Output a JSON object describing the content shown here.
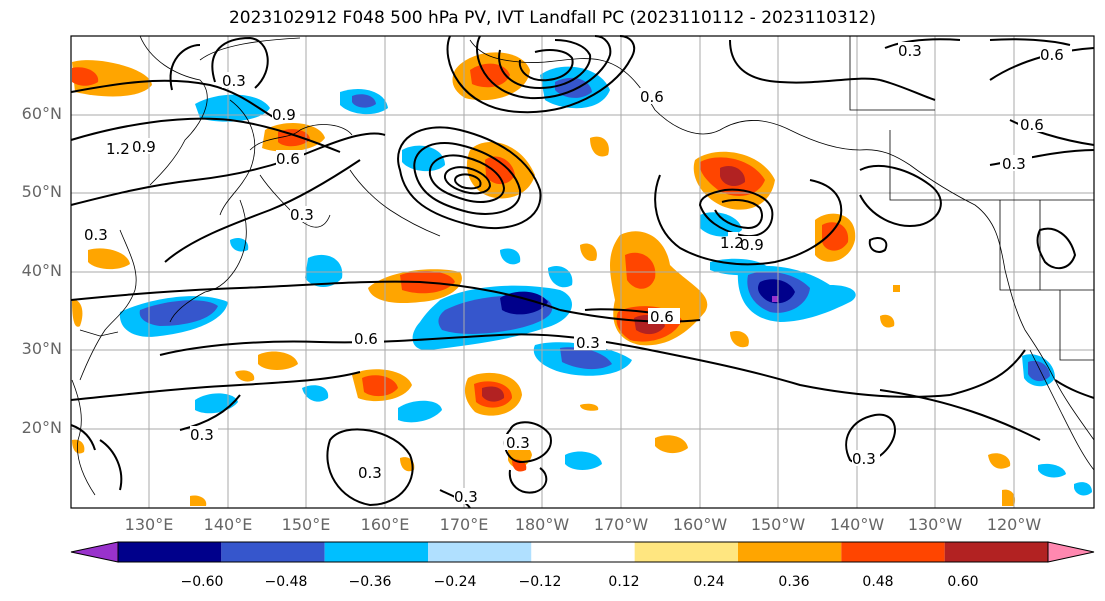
{
  "title": "2023102912 F048 500 hPa PV, IVT Landfall PC (2023110112 - 2023110312)",
  "lat_labels": [
    "60°N",
    "50°N",
    "40°N",
    "30°N",
    "20°N"
  ],
  "lon_labels": [
    "130°E",
    "140°E",
    "150°E",
    "160°E",
    "170°E",
    "180°W",
    "170°W",
    "160°W",
    "150°W",
    "140°W",
    "130°W",
    "120°W"
  ],
  "colorbar": {
    "ticks": [
      "−0.60",
      "−0.48",
      "−0.36",
      "−0.24",
      "−0.12",
      "0.12",
      "0.24",
      "0.36",
      "0.48",
      "0.60"
    ],
    "colors": [
      "#9932CC",
      "#00008B",
      "#3656CC",
      "#00BFFF",
      "#B0E0FF",
      "#FFFFFF",
      "#FFE680",
      "#FFA500",
      "#FF4500",
      "#B22222",
      "#FF88B0"
    ]
  },
  "contour_labels": [
    "0.3",
    "0.9",
    "0.6",
    "1.2",
    "0.9",
    "0.6",
    "0.3",
    "0.3",
    "0.6",
    "0.3",
    "0.3",
    "0.3",
    "0.3",
    "0.6",
    "0.3",
    "0.9",
    "1.2",
    "0.6",
    "0.3",
    "0.6",
    "0.3",
    "0.3"
  ]
}
